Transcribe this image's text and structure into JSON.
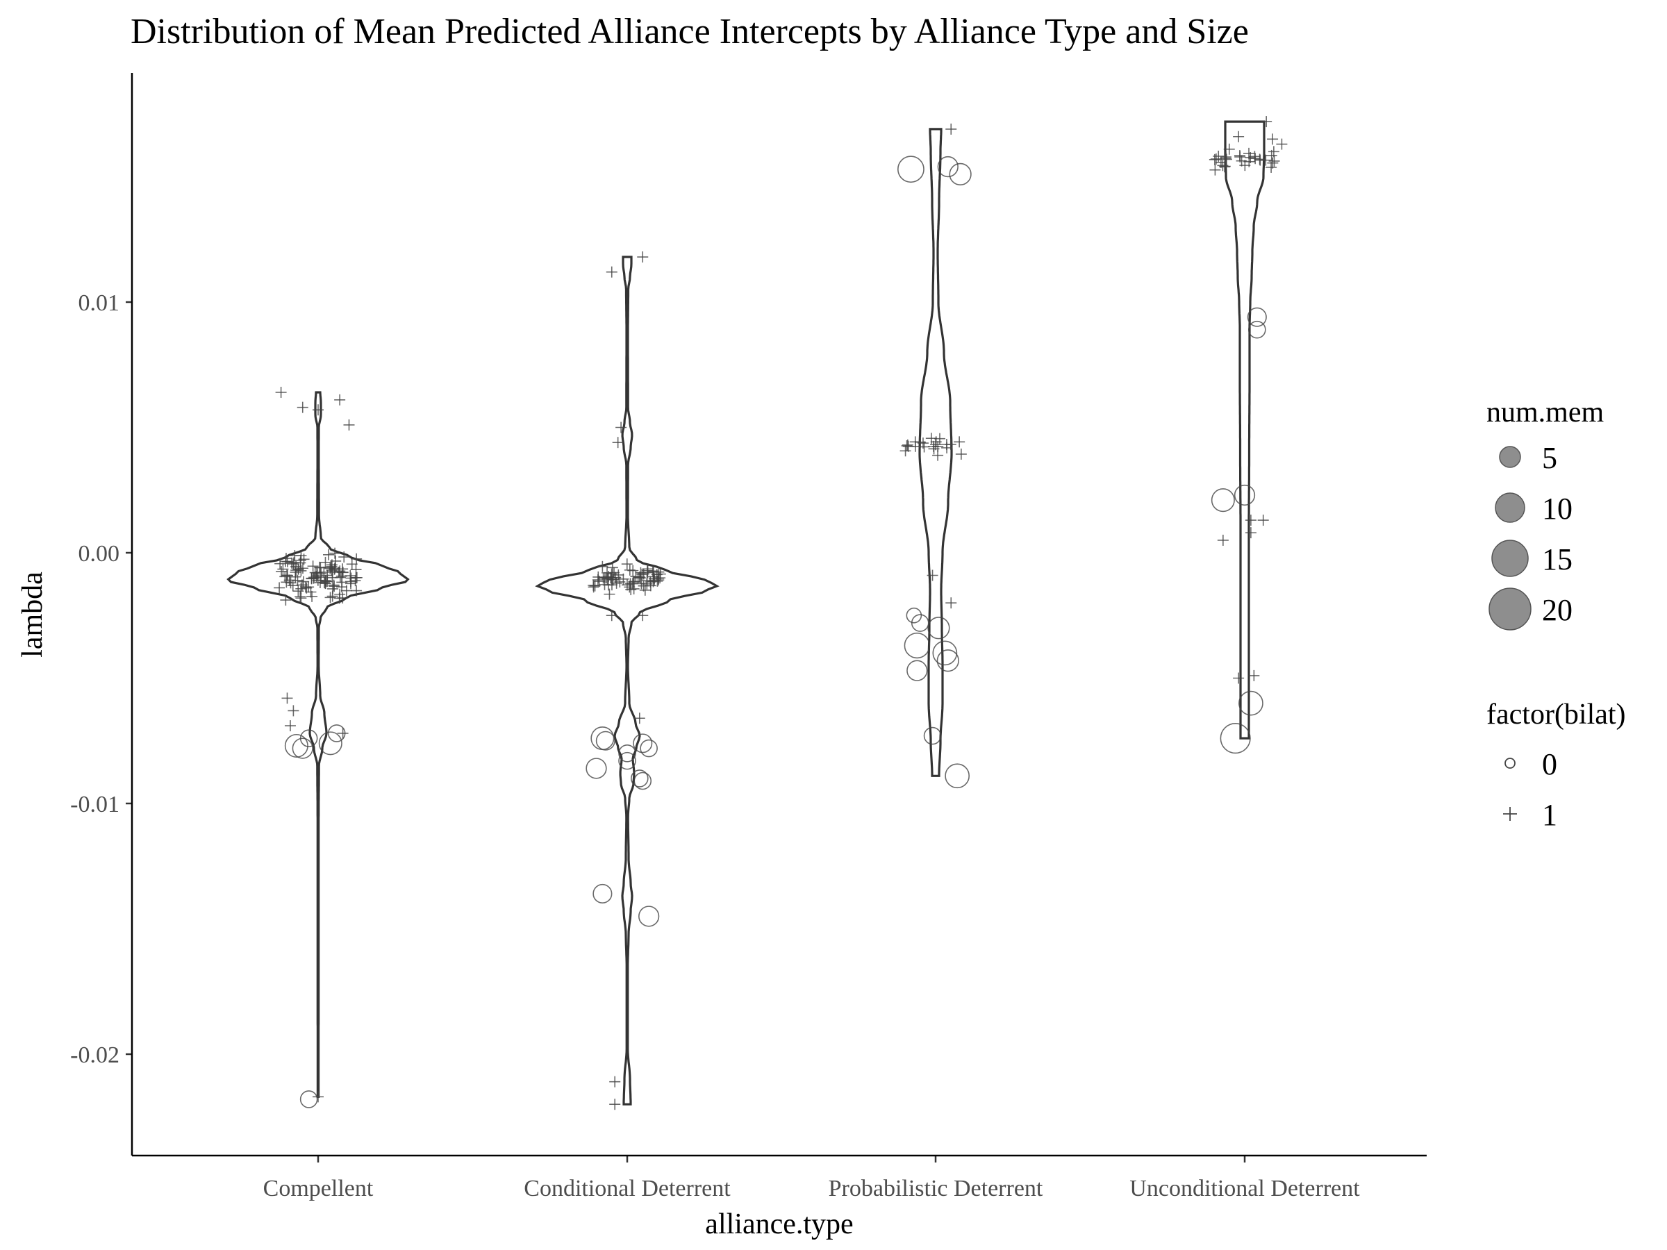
{
  "chart_data": {
    "type": "violin",
    "title": "Distribution of Mean Predicted Alliance Intercepts by Alliance Type and Size",
    "xlabel": "alliance.type",
    "ylabel": "lambda",
    "categories": [
      "Compellent",
      "Conditional Deterrent",
      "Probabilistic Deterrent",
      "Unconditional Deterrent"
    ],
    "ylim": [
      -0.0237,
      0.0193
    ],
    "yticks": [
      0.01,
      0.0,
      -0.01,
      -0.02
    ],
    "yticklabels": [
      "0.01",
      "0.00",
      "-0.01",
      "-0.02"
    ],
    "grid": false,
    "legend_placement": "right",
    "legends": [
      {
        "title": "num.mem",
        "shape": "filled-circle",
        "fill": "#7a7a7a",
        "entries": [
          {
            "label": "5",
            "value": 5
          },
          {
            "label": "10",
            "value": 10
          },
          {
            "label": "15",
            "value": 15
          },
          {
            "label": "20",
            "value": 20
          }
        ]
      },
      {
        "title": "factor(bilat)",
        "entries": [
          {
            "label": "0",
            "shape": "open-circle"
          },
          {
            "label": "1",
            "shape": "plus"
          }
        ]
      }
    ],
    "violins": [
      {
        "category": "Compellent",
        "min": -0.0217,
        "max": 0.0064,
        "profile": [
          [
            -0.0217,
            0.6
          ],
          [
            -0.016,
            0.7
          ],
          [
            -0.0105,
            0.75
          ],
          [
            -0.0085,
            1.2
          ],
          [
            -0.0078,
            6
          ],
          [
            -0.0072,
            12
          ],
          [
            -0.0064,
            9
          ],
          [
            -0.0057,
            3
          ],
          [
            -0.0045,
            0.8
          ],
          [
            -0.003,
            1
          ],
          [
            -0.0026,
            3.5
          ],
          [
            -0.0022,
            12
          ],
          [
            -0.0018,
            40
          ],
          [
            -0.0014,
            92
          ],
          [
            -0.0011,
            130
          ],
          [
            -0.0008,
            118
          ],
          [
            -0.0005,
            92
          ],
          [
            -0.0002,
            48
          ],
          [
            0.0002,
            16
          ],
          [
            0.0006,
            4
          ],
          [
            0.0015,
            1.2
          ],
          [
            0.004,
            0.9
          ],
          [
            0.005,
            1
          ],
          [
            0.0055,
            4
          ],
          [
            0.006,
            4
          ],
          [
            0.0064,
            3
          ]
        ]
      },
      {
        "category": "Conditional Deterrent",
        "min": -0.022,
        "max": 0.0118,
        "profile": [
          [
            -0.022,
            5
          ],
          [
            -0.021,
            4
          ],
          [
            -0.0198,
            0.8
          ],
          [
            -0.0165,
            0.8
          ],
          [
            -0.0152,
            2
          ],
          [
            -0.0143,
            5
          ],
          [
            -0.0137,
            7
          ],
          [
            -0.0132,
            5
          ],
          [
            -0.0122,
            2
          ],
          [
            -0.0105,
            1.2
          ],
          [
            -0.0098,
            3
          ],
          [
            -0.0092,
            9
          ],
          [
            -0.0088,
            10
          ],
          [
            -0.0082,
            8
          ],
          [
            -0.0078,
            13
          ],
          [
            -0.0073,
            18
          ],
          [
            -0.0068,
            12
          ],
          [
            -0.006,
            3
          ],
          [
            -0.0045,
            1
          ],
          [
            -0.0034,
            2
          ],
          [
            -0.0028,
            6
          ],
          [
            -0.0024,
            18
          ],
          [
            -0.0019,
            60
          ],
          [
            -0.0015,
            115
          ],
          [
            -0.0013,
            130
          ],
          [
            -0.0011,
            112
          ],
          [
            -0.0007,
            55
          ],
          [
            -0.0003,
            14
          ],
          [
            0.0002,
            3
          ],
          [
            0.0015,
            1
          ],
          [
            0.0035,
            1.2
          ],
          [
            0.0042,
            5
          ],
          [
            0.0047,
            7
          ],
          [
            0.0052,
            4
          ],
          [
            0.0058,
            1.2
          ],
          [
            0.0088,
            1
          ],
          [
            0.0105,
            1.5
          ],
          [
            0.011,
            4
          ],
          [
            0.0115,
            6
          ],
          [
            0.0118,
            6
          ]
        ]
      },
      {
        "category": "Probabilistic Deterrent",
        "min": -0.0089,
        "max": 0.0169,
        "profile": [
          [
            -0.0089,
            5
          ],
          [
            -0.0075,
            7
          ],
          [
            -0.006,
            10
          ],
          [
            -0.0045,
            10
          ],
          [
            -0.003,
            9
          ],
          [
            -0.0015,
            8
          ],
          [
            0.0,
            10
          ],
          [
            0.002,
            18
          ],
          [
            0.004,
            23
          ],
          [
            0.006,
            21
          ],
          [
            0.008,
            12
          ],
          [
            0.01,
            4
          ],
          [
            0.012,
            3
          ],
          [
            0.014,
            5
          ],
          [
            0.016,
            7
          ],
          [
            0.0169,
            8
          ]
        ]
      },
      {
        "category": "Unconditional Deterrent",
        "min": -0.0074,
        "max": 0.0172,
        "profile": [
          [
            -0.0074,
            6
          ],
          [
            -0.005,
            6
          ],
          [
            -0.002,
            6
          ],
          [
            0.001,
            6
          ],
          [
            0.004,
            6.5
          ],
          [
            0.007,
            7
          ],
          [
            0.009,
            7
          ],
          [
            0.01,
            8
          ],
          [
            0.011,
            10
          ],
          [
            0.012,
            11
          ],
          [
            0.013,
            13
          ],
          [
            0.014,
            18
          ],
          [
            0.015,
            27
          ],
          [
            0.016,
            28
          ],
          [
            0.0172,
            28
          ]
        ]
      }
    ],
    "points": [
      {
        "category": "Compellent",
        "offset": -0.12,
        "y": 0.0064,
        "bilat": 1,
        "num_mem": 2
      },
      {
        "category": "Compellent",
        "offset": -0.05,
        "y": 0.0058,
        "bilat": 1,
        "num_mem": 2
      },
      {
        "category": "Compellent",
        "offset": 0.0,
        "y": 0.0057,
        "bilat": 1,
        "num_mem": 2
      },
      {
        "category": "Compellent",
        "offset": 0.07,
        "y": 0.0061,
        "bilat": 1,
        "num_mem": 2
      },
      {
        "category": "Compellent",
        "offset": 0.1,
        "y": 0.0051,
        "bilat": 1,
        "num_mem": 2
      },
      {
        "category": "Compellent",
        "offset": -0.1,
        "y": -0.0058,
        "bilat": 1,
        "num_mem": 2
      },
      {
        "category": "Compellent",
        "offset": -0.08,
        "y": -0.0063,
        "bilat": 1,
        "num_mem": 2
      },
      {
        "category": "Compellent",
        "offset": -0.09,
        "y": -0.0069,
        "bilat": 1,
        "num_mem": 2
      },
      {
        "category": "Compellent",
        "offset": 0.08,
        "y": -0.0072,
        "bilat": 1,
        "num_mem": 2
      },
      {
        "category": "Compellent",
        "offset": -0.07,
        "y": -0.0077,
        "bilat": 0,
        "num_mem": 7
      },
      {
        "category": "Compellent",
        "offset": -0.05,
        "y": -0.0078,
        "bilat": 0,
        "num_mem": 5
      },
      {
        "category": "Compellent",
        "offset": 0.04,
        "y": -0.0076,
        "bilat": 0,
        "num_mem": 7
      },
      {
        "category": "Compellent",
        "offset": 0.06,
        "y": -0.0072,
        "bilat": 0,
        "num_mem": 3
      },
      {
        "category": "Compellent",
        "offset": -0.03,
        "y": -0.0074,
        "bilat": 0,
        "num_mem": 3
      },
      {
        "category": "Compellent",
        "offset": -0.03,
        "y": -0.0218,
        "bilat": 0,
        "num_mem": 3
      },
      {
        "category": "Compellent",
        "offset": 0.0,
        "y": -0.0217,
        "bilat": 1,
        "num_mem": 2
      },
      {
        "category": "Conditional Deterrent",
        "offset": -0.05,
        "y": 0.0112,
        "bilat": 1,
        "num_mem": 2
      },
      {
        "category": "Conditional Deterrent",
        "offset": 0.05,
        "y": 0.0118,
        "bilat": 1,
        "num_mem": 2
      },
      {
        "category": "Conditional Deterrent",
        "offset": -0.03,
        "y": 0.0044,
        "bilat": 1,
        "num_mem": 2
      },
      {
        "category": "Conditional Deterrent",
        "offset": -0.02,
        "y": 0.005,
        "bilat": 1,
        "num_mem": 2
      },
      {
        "category": "Conditional Deterrent",
        "offset": -0.05,
        "y": -0.0025,
        "bilat": 1,
        "num_mem": 2
      },
      {
        "category": "Conditional Deterrent",
        "offset": 0.05,
        "y": -0.0025,
        "bilat": 1,
        "num_mem": 2
      },
      {
        "category": "Conditional Deterrent",
        "offset": 0.04,
        "y": -0.0066,
        "bilat": 1,
        "num_mem": 2
      },
      {
        "category": "Conditional Deterrent",
        "offset": -0.08,
        "y": -0.0074,
        "bilat": 0,
        "num_mem": 7
      },
      {
        "category": "Conditional Deterrent",
        "offset": -0.07,
        "y": -0.0075,
        "bilat": 0,
        "num_mem": 4
      },
      {
        "category": "Conditional Deterrent",
        "offset": 0.05,
        "y": -0.0076,
        "bilat": 0,
        "num_mem": 4
      },
      {
        "category": "Conditional Deterrent",
        "offset": 0.07,
        "y": -0.0078,
        "bilat": 0,
        "num_mem": 3
      },
      {
        "category": "Conditional Deterrent",
        "offset": 0.0,
        "y": -0.008,
        "bilat": 0,
        "num_mem": 3
      },
      {
        "category": "Conditional Deterrent",
        "offset": -0.1,
        "y": -0.0086,
        "bilat": 0,
        "num_mem": 5
      },
      {
        "category": "Conditional Deterrent",
        "offset": 0.0,
        "y": -0.0083,
        "bilat": 0,
        "num_mem": 3
      },
      {
        "category": "Conditional Deterrent",
        "offset": 0.04,
        "y": -0.009,
        "bilat": 0,
        "num_mem": 3
      },
      {
        "category": "Conditional Deterrent",
        "offset": 0.05,
        "y": -0.0091,
        "bilat": 0,
        "num_mem": 3
      },
      {
        "category": "Conditional Deterrent",
        "offset": -0.08,
        "y": -0.0136,
        "bilat": 0,
        "num_mem": 4
      },
      {
        "category": "Conditional Deterrent",
        "offset": 0.07,
        "y": -0.0145,
        "bilat": 0,
        "num_mem": 5
      },
      {
        "category": "Conditional Deterrent",
        "offset": -0.04,
        "y": -0.0211,
        "bilat": 1,
        "num_mem": 2
      },
      {
        "category": "Conditional Deterrent",
        "offset": -0.04,
        "y": -0.022,
        "bilat": 1,
        "num_mem": 2
      },
      {
        "category": "Probabilistic Deterrent",
        "offset": 0.05,
        "y": 0.0169,
        "bilat": 1,
        "num_mem": 2
      },
      {
        "category": "Probabilistic Deterrent",
        "offset": -0.08,
        "y": 0.0153,
        "bilat": 0,
        "num_mem": 10
      },
      {
        "category": "Probabilistic Deterrent",
        "offset": 0.04,
        "y": 0.0154,
        "bilat": 0,
        "num_mem": 5
      },
      {
        "category": "Probabilistic Deterrent",
        "offset": 0.08,
        "y": 0.0151,
        "bilat": 0,
        "num_mem": 6
      },
      {
        "category": "Probabilistic Deterrent",
        "offset": -0.01,
        "y": -0.0009,
        "bilat": 1,
        "num_mem": 2
      },
      {
        "category": "Probabilistic Deterrent",
        "offset": 0.05,
        "y": -0.002,
        "bilat": 1,
        "num_mem": 2
      },
      {
        "category": "Probabilistic Deterrent",
        "offset": -0.07,
        "y": -0.0025,
        "bilat": 0,
        "num_mem": 2
      },
      {
        "category": "Probabilistic Deterrent",
        "offset": -0.05,
        "y": -0.0028,
        "bilat": 0,
        "num_mem": 3
      },
      {
        "category": "Probabilistic Deterrent",
        "offset": 0.01,
        "y": -0.003,
        "bilat": 0,
        "num_mem": 6
      },
      {
        "category": "Probabilistic Deterrent",
        "offset": -0.06,
        "y": -0.0037,
        "bilat": 0,
        "num_mem": 9
      },
      {
        "category": "Probabilistic Deterrent",
        "offset": 0.03,
        "y": -0.004,
        "bilat": 0,
        "num_mem": 8
      },
      {
        "category": "Probabilistic Deterrent",
        "offset": 0.04,
        "y": -0.0043,
        "bilat": 0,
        "num_mem": 6
      },
      {
        "category": "Probabilistic Deterrent",
        "offset": -0.06,
        "y": -0.0047,
        "bilat": 0,
        "num_mem": 5
      },
      {
        "category": "Probabilistic Deterrent",
        "offset": -0.01,
        "y": -0.0073,
        "bilat": 0,
        "num_mem": 3
      },
      {
        "category": "Probabilistic Deterrent",
        "offset": 0.07,
        "y": -0.0089,
        "bilat": 0,
        "num_mem": 8
      },
      {
        "category": "Unconditional Deterrent",
        "offset": -0.05,
        "y": 0.0161,
        "bilat": 1,
        "num_mem": 2
      },
      {
        "category": "Unconditional Deterrent",
        "offset": -0.02,
        "y": 0.0166,
        "bilat": 1,
        "num_mem": 2
      },
      {
        "category": "Unconditional Deterrent",
        "offset": 0.07,
        "y": 0.0172,
        "bilat": 1,
        "num_mem": 2
      },
      {
        "category": "Unconditional Deterrent",
        "offset": 0.09,
        "y": 0.0165,
        "bilat": 1,
        "num_mem": 2
      },
      {
        "category": "Unconditional Deterrent",
        "offset": 0.12,
        "y": 0.0163,
        "bilat": 1,
        "num_mem": 2
      },
      {
        "category": "Unconditional Deterrent",
        "offset": 0.04,
        "y": 0.0094,
        "bilat": 0,
        "num_mem": 4
      },
      {
        "category": "Unconditional Deterrent",
        "offset": 0.04,
        "y": 0.0089,
        "bilat": 0,
        "num_mem": 3
      },
      {
        "category": "Unconditional Deterrent",
        "offset": -0.07,
        "y": 0.0021,
        "bilat": 0,
        "num_mem": 7
      },
      {
        "category": "Unconditional Deterrent",
        "offset": 0.0,
        "y": 0.0023,
        "bilat": 0,
        "num_mem": 5
      },
      {
        "category": "Unconditional Deterrent",
        "offset": 0.02,
        "y": 0.0013,
        "bilat": 1,
        "num_mem": 2
      },
      {
        "category": "Unconditional Deterrent",
        "offset": 0.06,
        "y": 0.0013,
        "bilat": 1,
        "num_mem": 2
      },
      {
        "category": "Unconditional Deterrent",
        "offset": 0.02,
        "y": 0.0008,
        "bilat": 1,
        "num_mem": 2
      },
      {
        "category": "Unconditional Deterrent",
        "offset": -0.07,
        "y": 0.0005,
        "bilat": 1,
        "num_mem": 2
      },
      {
        "category": "Unconditional Deterrent",
        "offset": -0.02,
        "y": -0.005,
        "bilat": 1,
        "num_mem": 2
      },
      {
        "category": "Unconditional Deterrent",
        "offset": 0.03,
        "y": -0.0049,
        "bilat": 1,
        "num_mem": 2
      },
      {
        "category": "Unconditional Deterrent",
        "offset": 0.02,
        "y": -0.006,
        "bilat": 0,
        "num_mem": 8
      },
      {
        "category": "Unconditional Deterrent",
        "offset": -0.03,
        "y": -0.0074,
        "bilat": 0,
        "num_mem": 14
      }
    ],
    "clusters": [
      {
        "category": "Compellent",
        "bilat": 1,
        "count": 110,
        "y_min": -0.0022,
        "y_max": 0.0003,
        "x_spread": 0.13,
        "y_mean": -0.0009
      },
      {
        "category": "Conditional Deterrent",
        "bilat": 1,
        "count": 70,
        "y_min": -0.0018,
        "y_max": -0.0003,
        "x_spread": 0.11,
        "y_mean": -0.0013
      },
      {
        "category": "Probabilistic Deterrent",
        "bilat": 1,
        "count": 22,
        "y_min": 0.0038,
        "y_max": 0.0049,
        "x_spread": 0.1,
        "y_mean": 0.0044
      },
      {
        "category": "Unconditional Deterrent",
        "bilat": 1,
        "count": 28,
        "y_min": 0.0151,
        "y_max": 0.0162,
        "x_spread": 0.1,
        "y_mean": 0.0156
      }
    ]
  }
}
